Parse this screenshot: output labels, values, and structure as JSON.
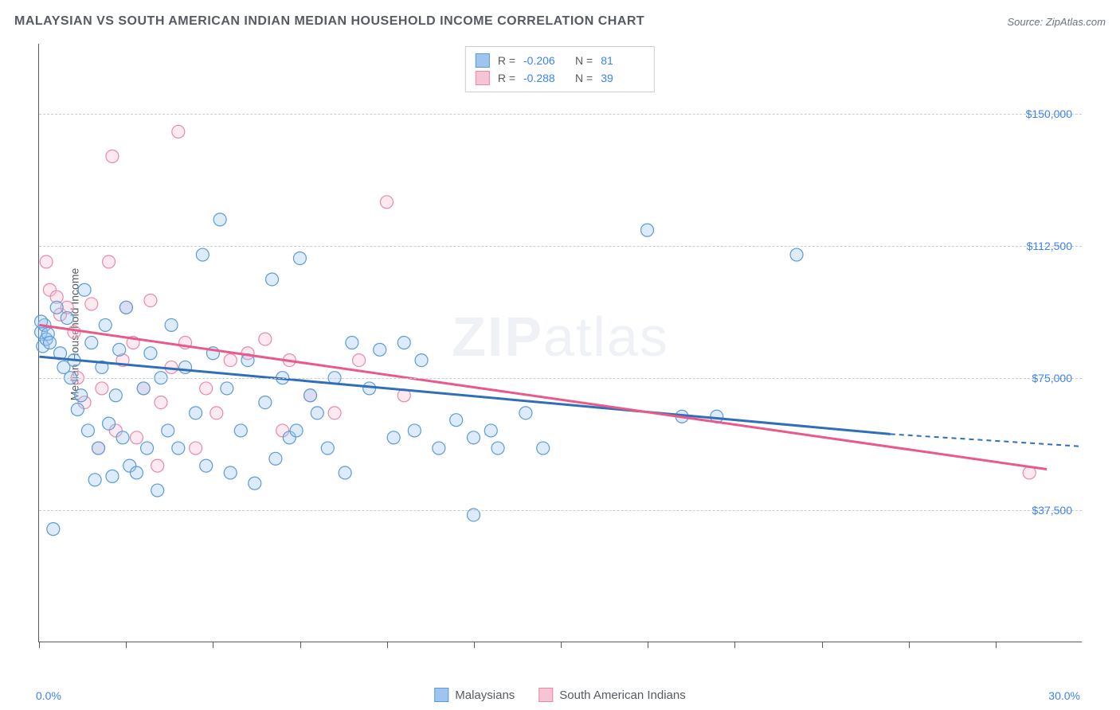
{
  "header": {
    "title": "MALAYSIAN VS SOUTH AMERICAN INDIAN MEDIAN HOUSEHOLD INCOME CORRELATION CHART",
    "source_prefix": "Source: ",
    "source": "ZipAtlas.com"
  },
  "y_axis": {
    "label": "Median Household Income",
    "ticks": [
      37500,
      75000,
      112500,
      150000
    ],
    "tick_labels": [
      "$37,500",
      "$75,000",
      "$112,500",
      "$150,000"
    ]
  },
  "x_axis": {
    "min_label": "0.0%",
    "max_label": "30.0%",
    "min": 0,
    "max": 30,
    "tick_positions": [
      0,
      2.5,
      5,
      7.5,
      10,
      12.5,
      15,
      17.5,
      20,
      22.5,
      25,
      27.5
    ]
  },
  "plot": {
    "xlim": [
      0,
      30
    ],
    "ylim": [
      0,
      170000
    ],
    "marker_radius": 8,
    "marker_fill_opacity": 0.35,
    "marker_stroke_width": 1.2,
    "background": "#ffffff",
    "grid_color": "#c9cdd2"
  },
  "series": {
    "blue": {
      "name": "Malaysians",
      "fill": "#9ec5f0",
      "stroke": "#5a9bd8",
      "line_color": "#2f6fb9",
      "R": "-0.206",
      "N": "81",
      "regression": {
        "x1": 0,
        "y1": 81000,
        "x2": 24.5,
        "y2": 59000
      },
      "regression_dash": {
        "x1": 24.5,
        "y1": 59000,
        "x2": 30,
        "y2": 55500
      },
      "points": [
        [
          0.05,
          88000
        ],
        [
          0.1,
          84000
        ],
        [
          0.15,
          90000
        ],
        [
          0.2,
          86000
        ],
        [
          0.25,
          87500
        ],
        [
          0.05,
          91000
        ],
        [
          0.3,
          85000
        ],
        [
          0.4,
          32000
        ],
        [
          0.5,
          95000
        ],
        [
          0.6,
          82000
        ],
        [
          0.7,
          78000
        ],
        [
          0.8,
          92000
        ],
        [
          0.9,
          75000
        ],
        [
          1.0,
          80000
        ],
        [
          1.1,
          66000
        ],
        [
          1.2,
          70000
        ],
        [
          1.3,
          100000
        ],
        [
          1.4,
          60000
        ],
        [
          1.5,
          85000
        ],
        [
          1.6,
          46000
        ],
        [
          1.7,
          55000
        ],
        [
          1.8,
          78000
        ],
        [
          1.9,
          90000
        ],
        [
          2.0,
          62000
        ],
        [
          2.1,
          47000
        ],
        [
          2.2,
          70000
        ],
        [
          2.3,
          83000
        ],
        [
          2.4,
          58000
        ],
        [
          2.5,
          95000
        ],
        [
          2.6,
          50000
        ],
        [
          2.8,
          48000
        ],
        [
          3.0,
          72000
        ],
        [
          3.1,
          55000
        ],
        [
          3.2,
          82000
        ],
        [
          3.4,
          43000
        ],
        [
          3.5,
          75000
        ],
        [
          3.7,
          60000
        ],
        [
          3.8,
          90000
        ],
        [
          4.0,
          55000
        ],
        [
          4.2,
          78000
        ],
        [
          4.5,
          65000
        ],
        [
          4.7,
          110000
        ],
        [
          4.8,
          50000
        ],
        [
          5.0,
          82000
        ],
        [
          5.2,
          120000
        ],
        [
          5.4,
          72000
        ],
        [
          5.5,
          48000
        ],
        [
          5.8,
          60000
        ],
        [
          6.0,
          80000
        ],
        [
          6.2,
          45000
        ],
        [
          6.5,
          68000
        ],
        [
          6.7,
          103000
        ],
        [
          6.8,
          52000
        ],
        [
          7.0,
          75000
        ],
        [
          7.2,
          58000
        ],
        [
          7.4,
          60000
        ],
        [
          7.5,
          109000
        ],
        [
          7.8,
          70000
        ],
        [
          8.0,
          65000
        ],
        [
          8.3,
          55000
        ],
        [
          8.5,
          75000
        ],
        [
          8.8,
          48000
        ],
        [
          9.0,
          85000
        ],
        [
          9.5,
          72000
        ],
        [
          9.8,
          83000
        ],
        [
          10.2,
          58000
        ],
        [
          10.5,
          85000
        ],
        [
          10.8,
          60000
        ],
        [
          11.0,
          80000
        ],
        [
          11.5,
          55000
        ],
        [
          12.0,
          63000
        ],
        [
          12.5,
          58000
        ],
        [
          12.5,
          36000
        ],
        [
          13.0,
          60000
        ],
        [
          13.2,
          55000
        ],
        [
          14.0,
          65000
        ],
        [
          14.5,
          55000
        ],
        [
          17.5,
          117000
        ],
        [
          18.5,
          64000
        ],
        [
          19.5,
          64000
        ],
        [
          21.8,
          110000
        ]
      ]
    },
    "pink": {
      "name": "South American Indians",
      "fill": "#f7c4d4",
      "stroke": "#e68aa8",
      "line_color": "#e85a8a",
      "R": "-0.288",
      "N": "39",
      "regression": {
        "x1": 0,
        "y1": 90000,
        "x2": 29,
        "y2": 49000
      },
      "points": [
        [
          0.2,
          108000
        ],
        [
          0.3,
          100000
        ],
        [
          0.5,
          98000
        ],
        [
          0.6,
          93000
        ],
        [
          0.8,
          95000
        ],
        [
          1.0,
          88000
        ],
        [
          1.1,
          75000
        ],
        [
          1.3,
          68000
        ],
        [
          1.5,
          96000
        ],
        [
          1.7,
          55000
        ],
        [
          1.8,
          72000
        ],
        [
          2.0,
          108000
        ],
        [
          2.1,
          138000
        ],
        [
          2.2,
          60000
        ],
        [
          2.4,
          80000
        ],
        [
          2.5,
          95000
        ],
        [
          2.7,
          85000
        ],
        [
          2.8,
          58000
        ],
        [
          3.0,
          72000
        ],
        [
          3.2,
          97000
        ],
        [
          3.4,
          50000
        ],
        [
          3.5,
          68000
        ],
        [
          3.8,
          78000
        ],
        [
          4.0,
          145000
        ],
        [
          4.2,
          85000
        ],
        [
          4.5,
          55000
        ],
        [
          4.8,
          72000
        ],
        [
          5.1,
          65000
        ],
        [
          5.5,
          80000
        ],
        [
          6.0,
          82000
        ],
        [
          6.5,
          86000
        ],
        [
          7.0,
          60000
        ],
        [
          7.2,
          80000
        ],
        [
          7.8,
          70000
        ],
        [
          8.5,
          65000
        ],
        [
          9.2,
          80000
        ],
        [
          10.0,
          125000
        ],
        [
          10.5,
          70000
        ],
        [
          28.5,
          48000
        ]
      ]
    }
  },
  "stats_labels": {
    "R": "R =",
    "N": "N ="
  },
  "legend": {
    "blue_label": "Malaysians",
    "pink_label": "South American Indians"
  },
  "watermark": {
    "part1": "ZIP",
    "part2": "atlas"
  }
}
